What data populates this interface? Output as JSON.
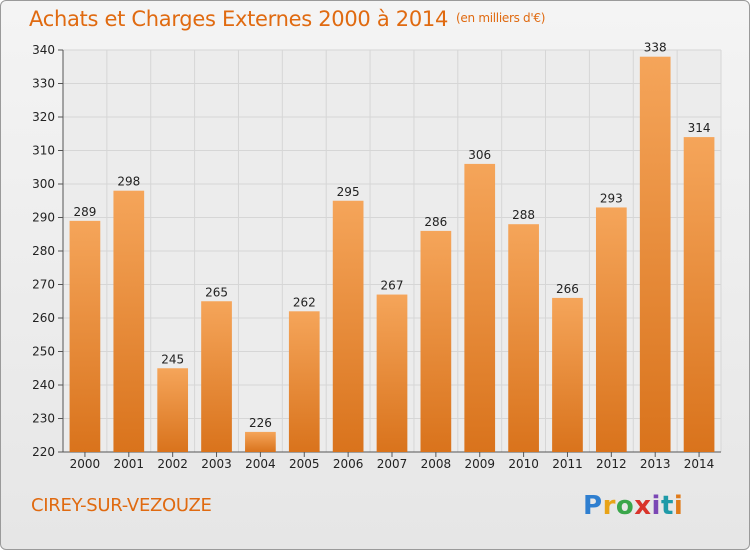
{
  "header": {
    "title": "Achats et Charges Externes 2000 à 2014",
    "unit": "(en milliers d'€)"
  },
  "footer": {
    "commune": "CIREY-SUR-VEZOUZE",
    "logo": {
      "letters": [
        "P",
        "r",
        "o",
        "x",
        "i",
        "t",
        "i"
      ],
      "colors": [
        "#2f7fd0",
        "#e8a317",
        "#3aa64a",
        "#d9342b",
        "#7b47b5",
        "#1f9aa8",
        "#e07b1a"
      ]
    }
  },
  "colors": {
    "accent": "#e06a10",
    "bar_top": "#f5a55a",
    "bar_bottom": "#d9731c",
    "grid": "#d6d6d6"
  },
  "chart_data": {
    "type": "bar",
    "title": "Achats et Charges Externes 2000 à 2014",
    "xlabel": "",
    "ylabel": "",
    "categories": [
      "2000",
      "2001",
      "2002",
      "2003",
      "2004",
      "2005",
      "2006",
      "2007",
      "2008",
      "2009",
      "2010",
      "2011",
      "2012",
      "2013",
      "2014"
    ],
    "values": [
      289,
      298,
      245,
      265,
      226,
      262,
      295,
      267,
      286,
      306,
      288,
      266,
      293,
      338,
      314
    ],
    "ylim": [
      220,
      340
    ],
    "yticks": [
      220,
      230,
      240,
      250,
      260,
      270,
      280,
      290,
      300,
      310,
      320,
      330,
      340
    ],
    "grid": true,
    "legend": "none"
  }
}
